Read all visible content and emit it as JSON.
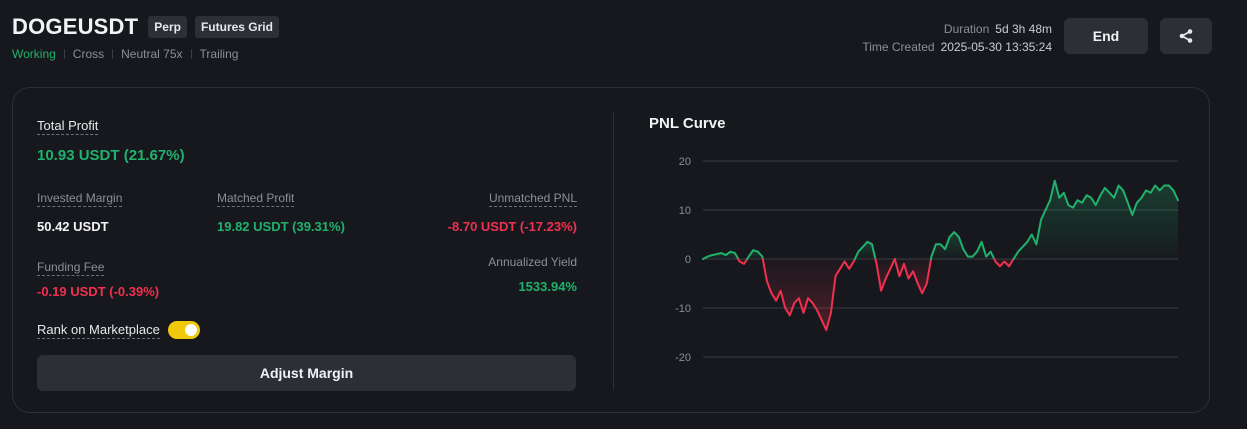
{
  "header": {
    "symbol": "DOGEUSDT",
    "tags": [
      "Perp",
      "Futures Grid"
    ],
    "status": "Working",
    "info": [
      "Cross",
      "Neutral 75x",
      "Trailing"
    ],
    "duration_label": "Duration",
    "duration_value": "5d 3h 48m",
    "created_label": "Time Created",
    "created_value": "2025-05-30 13:35:24",
    "end_label": "End",
    "share_icon": "share-icon"
  },
  "summary": {
    "total_profit_label": "Total Profit",
    "total_profit_value": "10.93 USDT (21.67%)",
    "invested_margin_label": "Invested Margin",
    "invested_margin_value": "50.42 USDT",
    "matched_profit_label": "Matched Profit",
    "matched_profit_value": "19.82 USDT (39.31%)",
    "unmatched_pnl_label": "Unmatched PNL",
    "unmatched_pnl_value": "-8.70 USDT (-17.23%)",
    "funding_fee_label": "Funding Fee",
    "funding_fee_value": "-0.19 USDT (-0.39%)",
    "annualized_yield_label": "Annualized Yield",
    "annualized_yield_value": "1533.94%",
    "rank_label": "Rank on Marketplace",
    "rank_enabled": true,
    "adjust_margin_label": "Adjust Margin"
  },
  "colors": {
    "positive": "#20b26c",
    "negative": "#f0304f",
    "toggle": "#f0c90a"
  },
  "chart_data": {
    "type": "line",
    "title": "PNL Curve",
    "ylim": [
      -20,
      20
    ],
    "yticks": [
      20,
      10,
      0,
      -10,
      -20
    ],
    "grid": true,
    "series": [
      {
        "values": [
          0,
          0.5,
          0.8,
          1.0,
          1.2,
          0.8,
          1.5,
          1.2,
          -0.5,
          -1.0,
          0.5,
          1.8,
          1.5,
          0.5,
          -4.5,
          -7.0,
          -8.5,
          -6.5,
          -10.0,
          -11.5,
          -9.0,
          -8.0,
          -11.0,
          -8.0,
          -9.0,
          -10.5,
          -12.5,
          -14.5,
          -11.0,
          -3.5,
          -2.0,
          -0.5,
          -2.0,
          -0.5,
          1.5,
          2.5,
          3.5,
          3.0,
          -1.0,
          -6.5,
          -4.0,
          -2.0,
          0,
          -3.5,
          -1.0,
          -4.0,
          -2.5,
          -5.0,
          -7.0,
          -5.0,
          0.5,
          3.0,
          3.0,
          2.0,
          4.5,
          5.5,
          4.5,
          2.0,
          0.5,
          0.5,
          1.5,
          3.5,
          0.5,
          1.5,
          -0.5,
          -1.5,
          -0.5,
          -1.5,
          0,
          1.5,
          2.5,
          3.5,
          5.0,
          3.0,
          8.0,
          10.0,
          12.0,
          16.0,
          12.5,
          13.5,
          11.0,
          10.5,
          12.0,
          11.5,
          13.0,
          12.5,
          11.0,
          13.0,
          14.5,
          13.5,
          12.5,
          15.0,
          14.0,
          11.5,
          9.0,
          11.5,
          12.5,
          14.0,
          13.5,
          15.0,
          14.0,
          15.0,
          15.0,
          14.0,
          12.0
        ]
      }
    ]
  }
}
